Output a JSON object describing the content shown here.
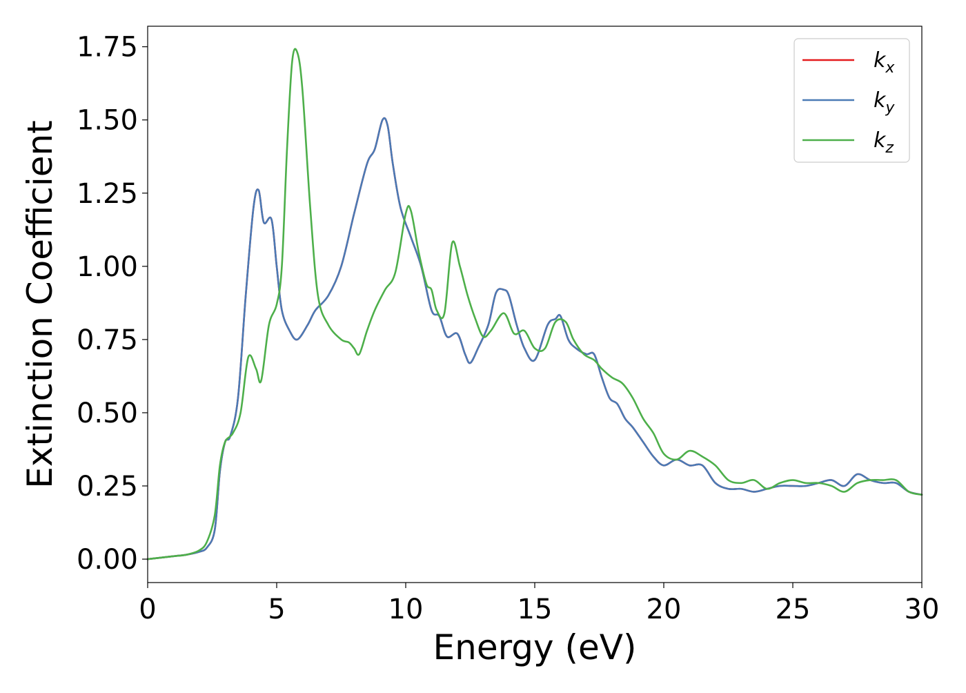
{
  "chart_data": {
    "type": "line",
    "xlabel": "Energy (eV)",
    "ylabel": "Extinction Coefficient",
    "xlim": [
      0,
      30
    ],
    "ylim": [
      -0.08,
      1.82
    ],
    "xticks": [
      0,
      5,
      10,
      15,
      20,
      25,
      30
    ],
    "xtick_labels": [
      "0",
      "5",
      "10",
      "15",
      "20",
      "25",
      "30"
    ],
    "yticks": [
      0.0,
      0.25,
      0.5,
      0.75,
      1.0,
      1.25,
      1.5,
      1.75
    ],
    "ytick_labels": [
      "0.00",
      "0.25",
      "0.50",
      "0.75",
      "1.00",
      "1.25",
      "1.50",
      "1.75"
    ],
    "grid": false,
    "legend_position": "top-right",
    "series": [
      {
        "name": "k_x",
        "legend_base": "k",
        "legend_sub": "x",
        "color": "#e41a1c",
        "x": [
          0,
          1,
          1.5,
          2,
          2.3,
          2.6,
          2.8,
          3.0,
          3.2,
          3.5,
          3.8,
          4.1,
          4.3,
          4.5,
          4.8,
          5.0,
          5.2,
          5.5,
          5.8,
          6.2,
          6.5,
          7.0,
          7.5,
          8.0,
          8.5,
          8.8,
          9.1,
          9.3,
          9.5,
          9.8,
          10.2,
          10.6,
          11.0,
          11.3,
          11.6,
          12.0,
          12.3,
          12.5,
          12.8,
          13.2,
          13.5,
          13.8,
          14.0,
          14.3,
          14.6,
          15.0,
          15.5,
          15.8,
          16.0,
          16.3,
          16.6,
          17.0,
          17.3,
          17.6,
          17.9,
          18.2,
          18.5,
          18.8,
          19.2,
          19.6,
          20.0,
          20.5,
          21.0,
          21.5,
          22.0,
          22.5,
          23.0,
          23.5,
          24.0,
          24.5,
          25.0,
          25.5,
          26.0,
          26.5,
          27.0,
          27.5,
          28.0,
          28.5,
          29.0,
          29.5,
          30.0
        ],
        "y": [
          0.0,
          0.01,
          0.015,
          0.025,
          0.04,
          0.1,
          0.3,
          0.4,
          0.42,
          0.55,
          0.9,
          1.2,
          1.26,
          1.15,
          1.16,
          1.0,
          0.85,
          0.78,
          0.75,
          0.8,
          0.85,
          0.9,
          1.0,
          1.18,
          1.35,
          1.4,
          1.5,
          1.48,
          1.35,
          1.2,
          1.1,
          1.0,
          0.85,
          0.83,
          0.76,
          0.77,
          0.7,
          0.67,
          0.72,
          0.8,
          0.91,
          0.92,
          0.9,
          0.8,
          0.72,
          0.68,
          0.8,
          0.82,
          0.83,
          0.75,
          0.72,
          0.7,
          0.7,
          0.62,
          0.55,
          0.53,
          0.48,
          0.45,
          0.4,
          0.35,
          0.32,
          0.34,
          0.32,
          0.32,
          0.26,
          0.24,
          0.24,
          0.23,
          0.24,
          0.25,
          0.25,
          0.25,
          0.26,
          0.27,
          0.25,
          0.29,
          0.27,
          0.26,
          0.26,
          0.23,
          0.22
        ]
      },
      {
        "name": "k_y",
        "legend_base": "k",
        "legend_sub": "y",
        "color": "#4a7ab5",
        "x": [
          0,
          1,
          1.5,
          2,
          2.3,
          2.6,
          2.8,
          3.0,
          3.2,
          3.5,
          3.8,
          4.1,
          4.3,
          4.5,
          4.8,
          5.0,
          5.2,
          5.5,
          5.8,
          6.2,
          6.5,
          7.0,
          7.5,
          8.0,
          8.5,
          8.8,
          9.1,
          9.3,
          9.5,
          9.8,
          10.2,
          10.6,
          11.0,
          11.3,
          11.6,
          12.0,
          12.3,
          12.5,
          12.8,
          13.2,
          13.5,
          13.8,
          14.0,
          14.3,
          14.6,
          15.0,
          15.5,
          15.8,
          16.0,
          16.3,
          16.6,
          17.0,
          17.3,
          17.6,
          17.9,
          18.2,
          18.5,
          18.8,
          19.2,
          19.6,
          20.0,
          20.5,
          21.0,
          21.5,
          22.0,
          22.5,
          23.0,
          23.5,
          24.0,
          24.5,
          25.0,
          25.5,
          26.0,
          26.5,
          27.0,
          27.5,
          28.0,
          28.5,
          29.0,
          29.5,
          30.0
        ],
        "y": [
          0.0,
          0.01,
          0.015,
          0.025,
          0.04,
          0.1,
          0.3,
          0.4,
          0.42,
          0.55,
          0.9,
          1.2,
          1.26,
          1.15,
          1.16,
          1.0,
          0.85,
          0.78,
          0.75,
          0.8,
          0.85,
          0.9,
          1.0,
          1.18,
          1.35,
          1.4,
          1.5,
          1.48,
          1.35,
          1.2,
          1.1,
          1.0,
          0.85,
          0.83,
          0.76,
          0.77,
          0.7,
          0.67,
          0.72,
          0.8,
          0.91,
          0.92,
          0.9,
          0.8,
          0.72,
          0.68,
          0.8,
          0.82,
          0.83,
          0.75,
          0.72,
          0.7,
          0.7,
          0.62,
          0.55,
          0.53,
          0.48,
          0.45,
          0.4,
          0.35,
          0.32,
          0.34,
          0.32,
          0.32,
          0.26,
          0.24,
          0.24,
          0.23,
          0.24,
          0.25,
          0.25,
          0.25,
          0.26,
          0.27,
          0.25,
          0.29,
          0.27,
          0.26,
          0.26,
          0.23,
          0.22
        ]
      },
      {
        "name": "k_z",
        "legend_base": "k",
        "legend_sub": "z",
        "color": "#4daf4a",
        "x": [
          0,
          1,
          1.5,
          2,
          2.3,
          2.6,
          2.8,
          3.0,
          3.3,
          3.6,
          3.9,
          4.2,
          4.4,
          4.7,
          5.0,
          5.2,
          5.4,
          5.6,
          5.8,
          6.0,
          6.3,
          6.6,
          7.0,
          7.5,
          7.8,
          8.0,
          8.2,
          8.5,
          8.8,
          9.2,
          9.6,
          10.0,
          10.2,
          10.5,
          10.8,
          11.0,
          11.2,
          11.5,
          11.8,
          12.1,
          12.4,
          12.7,
          13.0,
          13.3,
          13.8,
          14.2,
          14.6,
          15.0,
          15.4,
          15.8,
          16.2,
          16.5,
          16.9,
          17.3,
          17.6,
          18.0,
          18.4,
          18.8,
          19.2,
          19.6,
          20.0,
          20.5,
          21.0,
          21.5,
          22.0,
          22.5,
          23.0,
          23.5,
          24.0,
          24.5,
          25.0,
          25.5,
          26.0,
          26.5,
          27.0,
          27.5,
          28.0,
          28.5,
          29.0,
          29.5,
          30.0
        ],
        "y": [
          0.0,
          0.01,
          0.015,
          0.03,
          0.06,
          0.15,
          0.32,
          0.4,
          0.43,
          0.5,
          0.69,
          0.65,
          0.61,
          0.8,
          0.87,
          1.0,
          1.4,
          1.7,
          1.73,
          1.6,
          1.2,
          0.9,
          0.8,
          0.75,
          0.74,
          0.72,
          0.7,
          0.78,
          0.85,
          0.92,
          0.98,
          1.18,
          1.19,
          1.05,
          0.94,
          0.92,
          0.85,
          0.84,
          1.08,
          1.0,
          0.9,
          0.82,
          0.76,
          0.78,
          0.84,
          0.77,
          0.78,
          0.72,
          0.72,
          0.81,
          0.81,
          0.75,
          0.7,
          0.68,
          0.65,
          0.62,
          0.6,
          0.55,
          0.48,
          0.43,
          0.36,
          0.34,
          0.37,
          0.35,
          0.32,
          0.27,
          0.26,
          0.27,
          0.24,
          0.26,
          0.27,
          0.26,
          0.26,
          0.25,
          0.23,
          0.26,
          0.27,
          0.27,
          0.27,
          0.23,
          0.22
        ]
      }
    ]
  }
}
